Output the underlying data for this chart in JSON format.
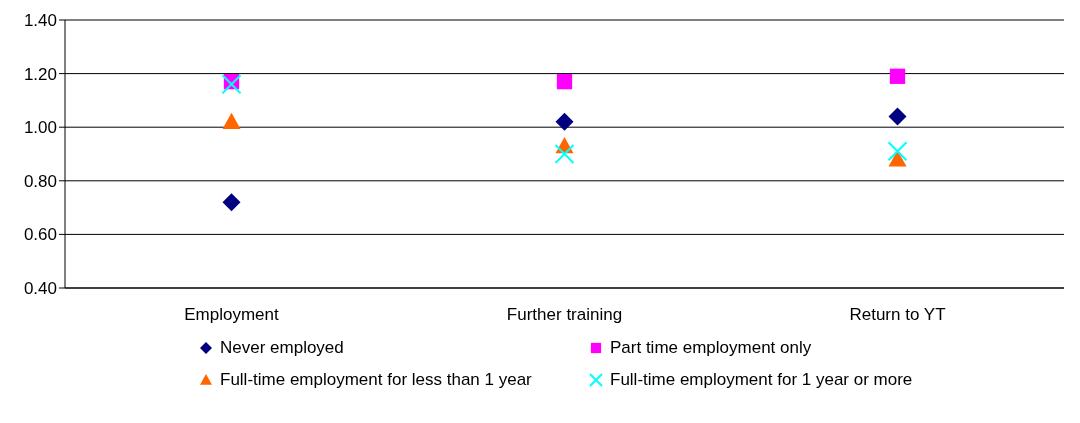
{
  "chart_data": {
    "type": "scatter",
    "categories": [
      "Employment",
      "Further training",
      "Return to YT"
    ],
    "series": [
      {
        "name": "Never employed",
        "color": "#000080",
        "marker": "diamond",
        "values": [
          0.72,
          1.02,
          1.04
        ]
      },
      {
        "name": "Part time employment only",
        "color": "#ff00ff",
        "marker": "square",
        "values": [
          1.17,
          1.17,
          1.19
        ]
      },
      {
        "name": "Full-time employment for less than 1 year",
        "color": "#ff6600",
        "marker": "triangle",
        "values": [
          1.02,
          0.93,
          0.88
        ]
      },
      {
        "name": "Full-time employment for 1 year or more",
        "color": "#00ffff",
        "marker": "cross",
        "values": [
          1.16,
          0.9,
          0.91
        ]
      }
    ],
    "ylim": [
      0.4,
      1.4
    ],
    "yticks": [
      {
        "value": 0.4,
        "label": "0.40"
      },
      {
        "value": 0.6,
        "label": "0.60"
      },
      {
        "value": 0.8,
        "label": "0.80"
      },
      {
        "value": 1.0,
        "label": "1.00"
      },
      {
        "value": 1.2,
        "label": "1.20"
      },
      {
        "value": 1.4,
        "label": "1.40"
      }
    ],
    "grid": "y",
    "legend": "bottom"
  }
}
